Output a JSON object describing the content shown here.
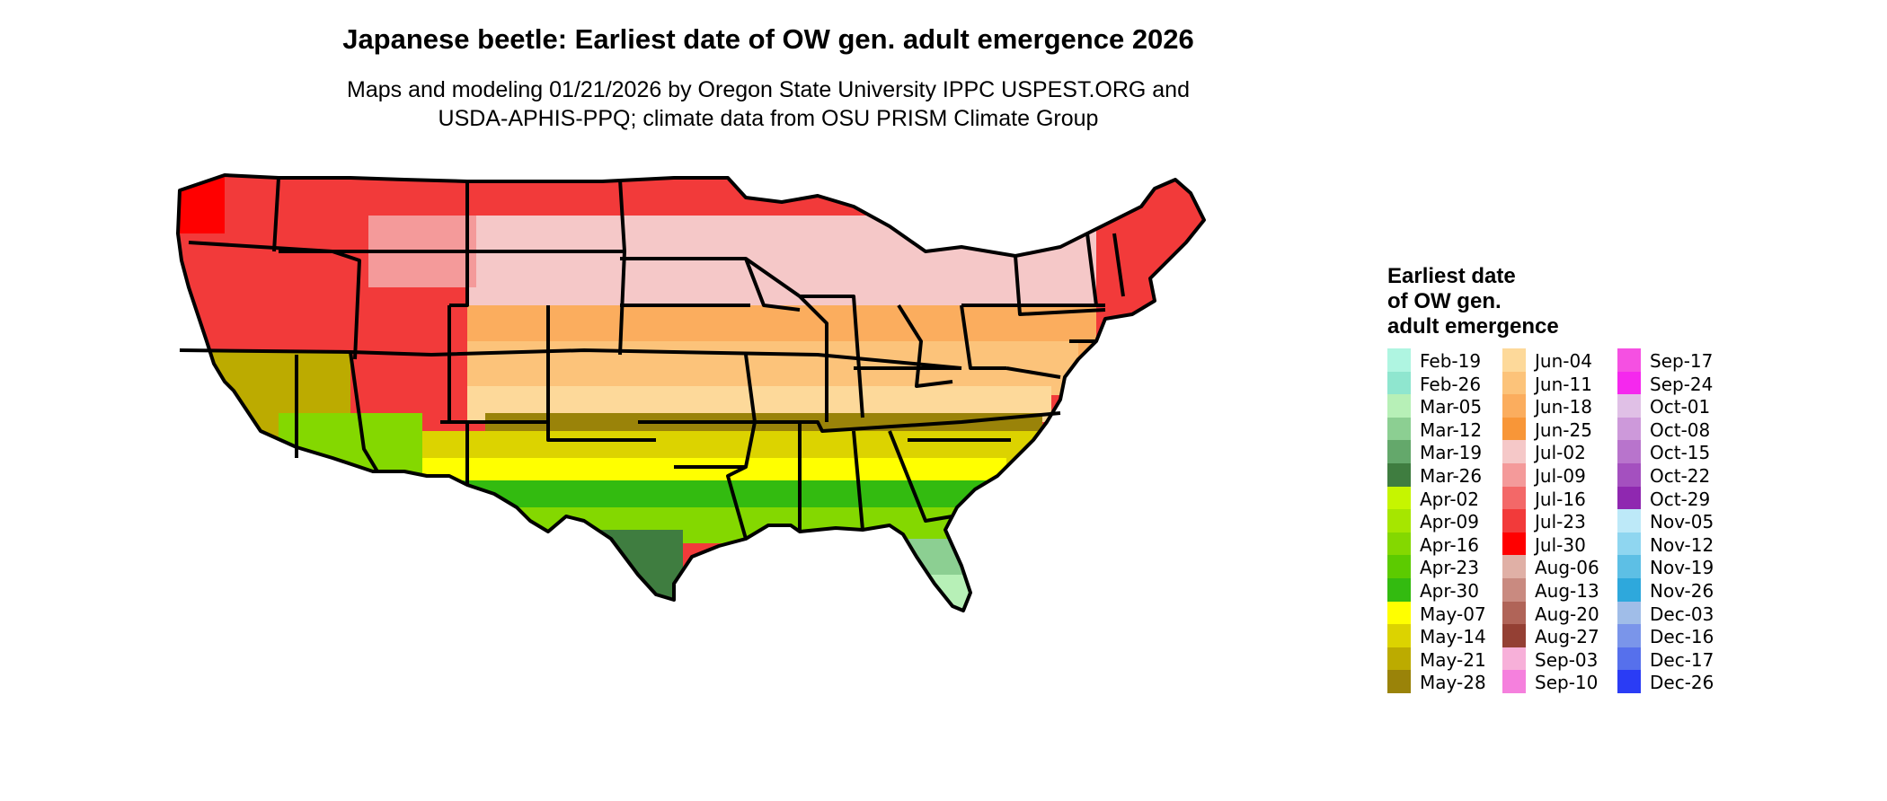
{
  "title": "Japanese beetle: Earliest date of OW gen. adult emergence 2026",
  "subtitle_line1": "Maps and modeling 01/21/2026 by Oregon State University IPPC USPEST.ORG and",
  "subtitle_line2": "USDA-APHIS-PPQ; climate data from OSU PRISM Climate Group",
  "legend": {
    "title_lines": [
      "Earliest date",
      "of OW gen.",
      "adult emergence"
    ],
    "columns": [
      [
        {
          "label": "Feb-19",
          "color": "#aff5e1"
        },
        {
          "label": "Feb-26",
          "color": "#8fe6cf"
        },
        {
          "label": "Mar-05",
          "color": "#b7f0b7"
        },
        {
          "label": "Mar-12",
          "color": "#8ccf92"
        },
        {
          "label": "Mar-19",
          "color": "#64a86b"
        },
        {
          "label": "Mar-26",
          "color": "#3f7d40"
        },
        {
          "label": "Apr-02",
          "color": "#c6f500"
        },
        {
          "label": "Apr-09",
          "color": "#a6e600"
        },
        {
          "label": "Apr-16",
          "color": "#84d800"
        },
        {
          "label": "Apr-23",
          "color": "#5ccb00"
        },
        {
          "label": "Apr-30",
          "color": "#33bb10"
        },
        {
          "label": "May-07",
          "color": "#ffff00"
        },
        {
          "label": "May-14",
          "color": "#dcd300"
        },
        {
          "label": "May-21",
          "color": "#bcab00"
        },
        {
          "label": "May-28",
          "color": "#9a8309"
        }
      ],
      [
        {
          "label": "Jun-04",
          "color": "#fdd99a"
        },
        {
          "label": "Jun-11",
          "color": "#fcc37a"
        },
        {
          "label": "Jun-18",
          "color": "#fbad5e"
        },
        {
          "label": "Jun-25",
          "color": "#f89638"
        },
        {
          "label": "Jul-02",
          "color": "#f5c8c8"
        },
        {
          "label": "Jul-09",
          "color": "#f49a9a"
        },
        {
          "label": "Jul-16",
          "color": "#f36868"
        },
        {
          "label": "Jul-23",
          "color": "#f23a3a"
        },
        {
          "label": "Jul-30",
          "color": "#ff0000"
        },
        {
          "label": "Aug-06",
          "color": "#e0b0a6"
        },
        {
          "label": "Aug-13",
          "color": "#c98a80"
        },
        {
          "label": "Aug-20",
          "color": "#b06458"
        },
        {
          "label": "Aug-27",
          "color": "#944034"
        },
        {
          "label": "Sep-03",
          "color": "#f7b0d9"
        },
        {
          "label": "Sep-10",
          "color": "#f580dd"
        }
      ],
      [
        {
          "label": "Sep-17",
          "color": "#f550e2"
        },
        {
          "label": "Sep-24",
          "color": "#f528ee"
        },
        {
          "label": "Oct-01",
          "color": "#e0c0e6"
        },
        {
          "label": "Oct-08",
          "color": "#cd99da"
        },
        {
          "label": "Oct-15",
          "color": "#b874cc"
        },
        {
          "label": "Oct-22",
          "color": "#a450bf"
        },
        {
          "label": "Oct-29",
          "color": "#8f28b0"
        },
        {
          "label": "Nov-05",
          "color": "#bde9f8"
        },
        {
          "label": "Nov-12",
          "color": "#8fd6f0"
        },
        {
          "label": "Nov-19",
          "color": "#5dbfe5"
        },
        {
          "label": "Nov-26",
          "color": "#2ea8dc"
        },
        {
          "label": "Dec-03",
          "color": "#a0bde8"
        },
        {
          "label": "Dec-16",
          "color": "#7a95ea"
        },
        {
          "label": "Dec-17",
          "color": "#5670ec"
        },
        {
          "label": "Dec-26",
          "color": "#2a3cf5"
        }
      ]
    ]
  }
}
